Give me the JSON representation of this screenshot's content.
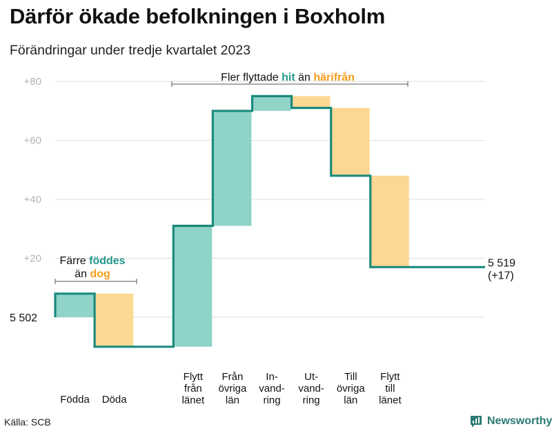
{
  "title": "Därför ökade befolkningen i Boxholm",
  "subtitle": "Förändringar under tredje kvartalet 2023",
  "source": "Källa: SCB",
  "brand": {
    "name": "Newsworthy",
    "icon": "bar-chart-logo-icon"
  },
  "colors": {
    "increase": "#8fd3c9",
    "decrease": "#fcd893",
    "line": "#1a8a7c",
    "grid": "#dddddd",
    "axis_text": "#b3b3b3",
    "accent_teal": "#21978b",
    "accent_orange": "#f39c1a"
  },
  "annotations": {
    "left": {
      "line1_prefix": "Färre ",
      "line1_em": "föddes",
      "line2_prefix": "än ",
      "line2_em": "dog"
    },
    "top": {
      "prefix": "Fler flyttade ",
      "em1": "hit",
      "middle": " än ",
      "em2": "härifrån"
    }
  },
  "chart_data": {
    "type": "waterfall",
    "title": "Därför ökade befolkningen i Boxholm",
    "subtitle": "Förändringar under tredje kvartalet 2023",
    "y_ticks": [
      "+80",
      "+60",
      "+40",
      "+20"
    ],
    "y_tick_values": [
      80,
      60,
      40,
      20
    ],
    "ylim": [
      -10,
      82
    ],
    "start": {
      "label": "5  502",
      "value": 5502,
      "offset": 0
    },
    "end": {
      "label_line1": "5 519",
      "label_line2": "(+17)",
      "value": 5519,
      "offset": 17
    },
    "categories": [
      {
        "label": [
          "Födda"
        ],
        "change": 8,
        "type": "increase"
      },
      {
        "label": [
          "Döda"
        ],
        "change": -18,
        "type": "decrease"
      },
      {
        "label": [],
        "change": 0,
        "type": "gap"
      },
      {
        "label": [
          "Flytt",
          "från",
          "länet"
        ],
        "change": 41,
        "type": "increase"
      },
      {
        "label": [
          "Från",
          "övriga",
          "län"
        ],
        "change": 39,
        "type": "increase"
      },
      {
        "label": [
          "In-",
          "vand-",
          "ring"
        ],
        "change": 5,
        "type": "increase"
      },
      {
        "label": [
          "Ut-",
          "vand-",
          "ring"
        ],
        "change": -4,
        "type": "decrease"
      },
      {
        "label": [
          "Till",
          "övriga",
          "län"
        ],
        "change": -23,
        "type": "decrease"
      },
      {
        "label": [
          "Flytt",
          "till",
          "länet"
        ],
        "change": -31,
        "type": "decrease"
      }
    ],
    "grid": true
  }
}
